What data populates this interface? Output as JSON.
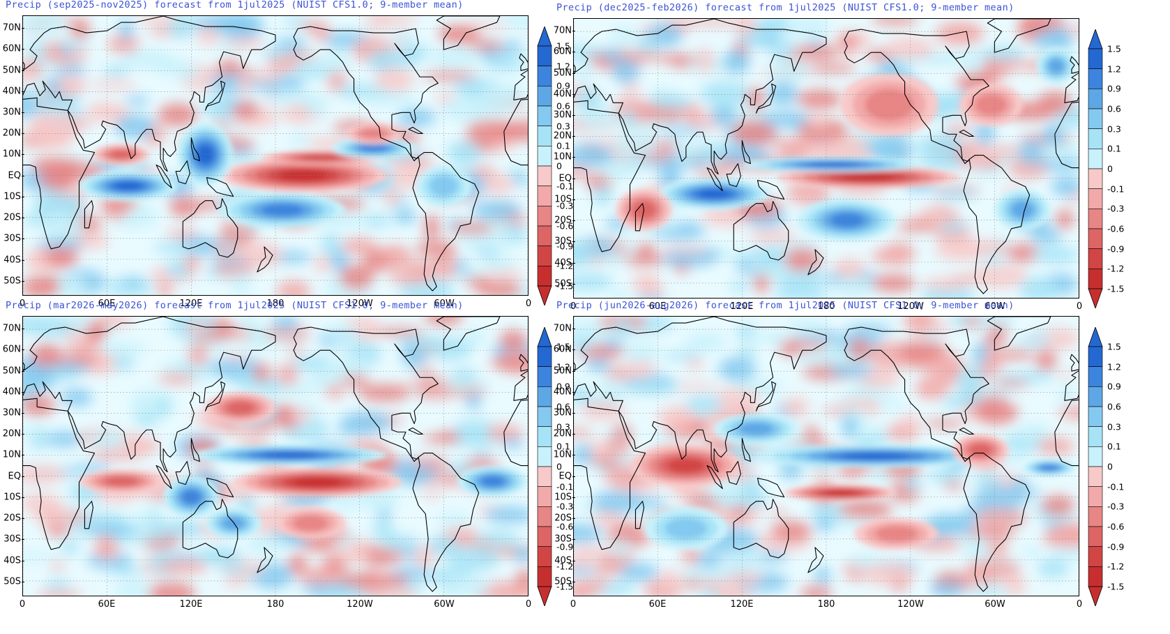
{
  "colors": {
    "title": "#3a53d6",
    "coast": "#000000",
    "grid": "#8a8a8a",
    "blue_levels": [
      "#e9fbff",
      "#c8f1fb",
      "#a6e3f7",
      "#84c9f0",
      "#5ea7e6",
      "#3c84dd",
      "#2468d2"
    ],
    "red_levels": [
      "#fde7e7",
      "#f8c9c9",
      "#f2a9a9",
      "#e88585",
      "#dd6565",
      "#d24545",
      "#c72f2f"
    ]
  },
  "map_axes": {
    "lat_labels": [
      "70N",
      "60N",
      "50N",
      "40N",
      "30N",
      "20N",
      "10N",
      "EQ",
      "10S",
      "20S",
      "30S",
      "40S",
      "50S"
    ],
    "lat_values": [
      70,
      60,
      50,
      40,
      30,
      20,
      10,
      0,
      -10,
      -20,
      -30,
      -40,
      -50
    ],
    "lon_labels": [
      "0",
      "60E",
      "120E",
      "180",
      "120W",
      "60W",
      "0"
    ],
    "lon_values": [
      0,
      60,
      120,
      180,
      240,
      300,
      360
    ],
    "lat_range": [
      -57,
      76
    ],
    "lon_range": [
      0,
      360
    ],
    "grid": "on"
  },
  "colorbar": {
    "labels": [
      "1.5",
      "1.2",
      "0.9",
      "0.6",
      "0.3",
      "0.1",
      "0",
      "-0.1",
      "-0.3",
      "-0.6",
      "-0.9",
      "-1.2",
      "-1.5"
    ],
    "extend": "both"
  },
  "panels": [
    {
      "title": "Precip (sep2025-nov2025) forecast from 1jul2025 (NUIST CFS1.0; 9-member mean)",
      "features": [
        {
          "kind": "wet",
          "lon": [
            40,
            110
          ],
          "lat": [
            -12,
            2
          ],
          "level": 6
        },
        {
          "kind": "dry",
          "lon": [
            140,
            260
          ],
          "lat": [
            -8,
            8
          ],
          "level": 6
        },
        {
          "kind": "dry",
          "lon": [
            170,
            255
          ],
          "lat": [
            5,
            12
          ],
          "level": 5
        },
        {
          "kind": "wet",
          "lon": [
            110,
            150
          ],
          "lat": [
            -5,
            25
          ],
          "level": 6
        },
        {
          "kind": "wet",
          "lon": [
            140,
            230
          ],
          "lat": [
            -25,
            -8
          ],
          "level": 5
        },
        {
          "kind": "wet",
          "lon": [
            220,
            280
          ],
          "lat": [
            8,
            18
          ],
          "level": 5
        },
        {
          "kind": "dry",
          "lon": [
            50,
            90
          ],
          "lat": [
            5,
            15
          ],
          "level": 4
        },
        {
          "kind": "wet",
          "lon": [
            280,
            320
          ],
          "lat": [
            -15,
            5
          ],
          "level": 3
        },
        {
          "kind": "dry",
          "lon": [
            230,
            270
          ],
          "lat": [
            15,
            25
          ],
          "level": 3
        }
      ]
    },
    {
      "title": "Precip (dec2025-feb2026) forecast from 1jul2025 (NUIST CFS1.0; 9-member mean)",
      "features": [
        {
          "kind": "dry",
          "lon": [
            145,
            275
          ],
          "lat": [
            -5,
            6
          ],
          "level": 6
        },
        {
          "kind": "wet",
          "lon": [
            120,
            250
          ],
          "lat": [
            3,
            10
          ],
          "level": 6
        },
        {
          "kind": "wet",
          "lon": [
            60,
            140
          ],
          "lat": [
            -15,
            0
          ],
          "level": 6
        },
        {
          "kind": "dry",
          "lon": [
            30,
            70
          ],
          "lat": [
            -25,
            -5
          ],
          "level": 4
        },
        {
          "kind": "wet",
          "lon": [
            160,
            230
          ],
          "lat": [
            -30,
            -10
          ],
          "level": 5
        },
        {
          "kind": "dry",
          "lon": [
            190,
            260
          ],
          "lat": [
            20,
            50
          ],
          "level": 3
        },
        {
          "kind": "wet",
          "lon": [
            300,
            340
          ],
          "lat": [
            -25,
            -5
          ],
          "level": 4
        },
        {
          "kind": "dry",
          "lon": [
            275,
            320
          ],
          "lat": [
            25,
            45
          ],
          "level": 3
        },
        {
          "kind": "wet",
          "lon": [
            330,
            358
          ],
          "lat": [
            45,
            62
          ],
          "level": 4
        }
      ]
    },
    {
      "title": "Precip (mar2026-may2026) forecast from 1jul2025 (NUIST CFS1.0; 9-member mean)",
      "features": [
        {
          "kind": "dry",
          "lon": [
            150,
            270
          ],
          "lat": [
            -10,
            4
          ],
          "level": 6
        },
        {
          "kind": "wet",
          "lon": [
            120,
            260
          ],
          "lat": [
            5,
            15
          ],
          "level": 6
        },
        {
          "kind": "wet",
          "lon": [
            100,
            140
          ],
          "lat": [
            -20,
            0
          ],
          "level": 5
        },
        {
          "kind": "dry",
          "lon": [
            130,
            180
          ],
          "lat": [
            25,
            40
          ],
          "level": 4
        },
        {
          "kind": "dry",
          "lon": [
            40,
            100
          ],
          "lat": [
            -8,
            3
          ],
          "level": 4
        },
        {
          "kind": "wet",
          "lon": [
            310,
            360
          ],
          "lat": [
            -10,
            5
          ],
          "level": 5
        },
        {
          "kind": "wet",
          "lon": [
            130,
            170
          ],
          "lat": [
            -30,
            -15
          ],
          "level": 4
        },
        {
          "kind": "dry",
          "lon": [
            180,
            230
          ],
          "lat": [
            -30,
            -15
          ],
          "level": 3
        }
      ]
    },
    {
      "title": "Precip (jun2026-aug2026) forecast from 1jul2025 (NUIST CFS1.0; 9-member mean)",
      "features": [
        {
          "kind": "dry",
          "lon": [
            150,
            230
          ],
          "lat": [
            -12,
            -4
          ],
          "level": 6
        },
        {
          "kind": "wet",
          "lon": [
            130,
            300
          ],
          "lat": [
            4,
            15
          ],
          "level": 6
        },
        {
          "kind": "dry",
          "lon": [
            40,
            120
          ],
          "lat": [
            -5,
            15
          ],
          "level": 5
        },
        {
          "kind": "wet",
          "lon": [
            100,
            160
          ],
          "lat": [
            15,
            30
          ],
          "level": 4
        },
        {
          "kind": "dry",
          "lon": [
            270,
            310
          ],
          "lat": [
            5,
            20
          ],
          "level": 4
        },
        {
          "kind": "wet",
          "lon": [
            50,
            110
          ],
          "lat": [
            -35,
            -15
          ],
          "level": 3
        },
        {
          "kind": "dry",
          "lon": [
            200,
            260
          ],
          "lat": [
            -35,
            -20
          ],
          "level": 3
        },
        {
          "kind": "wet",
          "lon": [
            320,
            358
          ],
          "lat": [
            0,
            8
          ],
          "level": 5
        }
      ]
    }
  ]
}
